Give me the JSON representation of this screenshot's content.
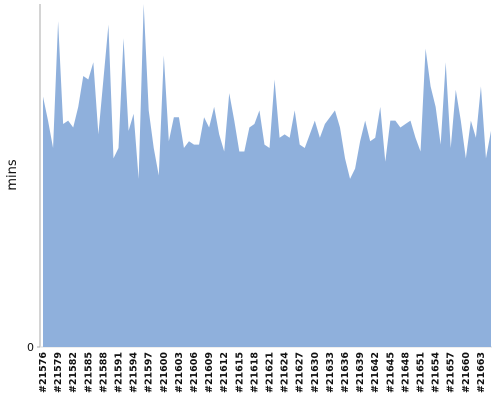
{
  "chart_data": {
    "type": "area",
    "y_label": "mins",
    "color": "#8fb0dc",
    "categories": [
      "#21576",
      null,
      null,
      "#21579",
      null,
      null,
      "#21582",
      null,
      null,
      "#21585",
      null,
      null,
      "#21588",
      null,
      null,
      "#21591",
      null,
      null,
      "#21594",
      null,
      null,
      "#21597",
      null,
      null,
      "#21600",
      null,
      null,
      "#21603",
      null,
      null,
      "#21606",
      null,
      null,
      "#21609",
      null,
      null,
      "#21612",
      null,
      null,
      "#21615",
      null,
      null,
      "#21618",
      null,
      null,
      "#21621",
      null,
      null,
      "#21624",
      null,
      null,
      "#21627",
      null,
      null,
      "#21630",
      null,
      null,
      "#21633",
      null,
      null,
      "#21636",
      null,
      null,
      "#21639",
      null,
      null,
      "#21642",
      null,
      null,
      "#21645",
      null,
      null,
      "#21648",
      null,
      null,
      "#21651",
      null,
      null,
      "#21654",
      null,
      null,
      "#21657",
      null,
      null,
      "#21660",
      null,
      null,
      "#21663",
      null,
      null
    ],
    "values": [
      73,
      66,
      58,
      95,
      65,
      66,
      64,
      70,
      79,
      78,
      83,
      62,
      78,
      94,
      55,
      58,
      90,
      63,
      68,
      49,
      100,
      69,
      58,
      50,
      85,
      60,
      67,
      67,
      58,
      60,
      59,
      59,
      67,
      64,
      70,
      62,
      57,
      74,
      66,
      57,
      57,
      64,
      65,
      69,
      59,
      58,
      78,
      61,
      62,
      61,
      69,
      59,
      58,
      62,
      66,
      61,
      65,
      67,
      69,
      64,
      55,
      49,
      52,
      60,
      66,
      60,
      61,
      70,
      54,
      66,
      66,
      64,
      65,
      66,
      61,
      57,
      87,
      76,
      70,
      59,
      83,
      58,
      75,
      66,
      55,
      66,
      61,
      76,
      55,
      63
    ],
    "ylim": [
      0,
      100
    ],
    "yticks": [
      0
    ]
  }
}
